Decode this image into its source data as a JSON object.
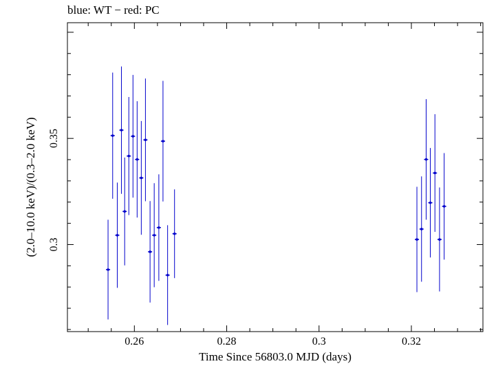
{
  "chart_data": {
    "type": "scatter",
    "title": "blue: WT − red: PC",
    "xlabel": "Time Since 56803.0 MJD (days)",
    "ylabel": "(2.0–10.0 keV)/(0.3–2.0 keV)",
    "xlim": [
      0.2455,
      0.3355
    ],
    "ylim": [
      0.259,
      0.4045
    ],
    "x_ticks": [
      0.26,
      0.28,
      0.3,
      0.32
    ],
    "x_tick_labels": [
      "0.26",
      "0.28",
      "0.3",
      "0.32"
    ],
    "y_ticks": [
      0.3,
      0.35
    ],
    "y_tick_labels": [
      "0.3",
      "0.35"
    ],
    "grid": false,
    "series": [
      {
        "color": "#0000cc",
        "points": [
          {
            "x": 0.2543,
            "y": 0.2882,
            "xerr": 0.00045,
            "yerr": 0.0235
          },
          {
            "x": 0.2553,
            "y": 0.3513,
            "xerr": 0.00045,
            "yerr": 0.0297
          },
          {
            "x": 0.2563,
            "y": 0.3044,
            "xerr": 0.00045,
            "yerr": 0.0248
          },
          {
            "x": 0.2572,
            "y": 0.3539,
            "xerr": 0.00045,
            "yerr": 0.03
          },
          {
            "x": 0.2579,
            "y": 0.3156,
            "xerr": 0.00045,
            "yerr": 0.0254
          },
          {
            "x": 0.2588,
            "y": 0.3417,
            "xerr": 0.00045,
            "yerr": 0.0278
          },
          {
            "x": 0.2597,
            "y": 0.351,
            "xerr": 0.00045,
            "yerr": 0.0289
          },
          {
            "x": 0.2606,
            "y": 0.3401,
            "xerr": 0.00045,
            "yerr": 0.0274
          },
          {
            "x": 0.2615,
            "y": 0.3314,
            "xerr": 0.00045,
            "yerr": 0.0268
          },
          {
            "x": 0.2624,
            "y": 0.3493,
            "xerr": 0.00045,
            "yerr": 0.0289
          },
          {
            "x": 0.2634,
            "y": 0.2966,
            "xerr": 0.00045,
            "yerr": 0.0239
          },
          {
            "x": 0.2643,
            "y": 0.3044,
            "xerr": 0.00045,
            "yerr": 0.0245
          },
          {
            "x": 0.2653,
            "y": 0.308,
            "xerr": 0.00045,
            "yerr": 0.0251
          },
          {
            "x": 0.2662,
            "y": 0.3487,
            "xerr": 0.00045,
            "yerr": 0.0284
          },
          {
            "x": 0.2672,
            "y": 0.2856,
            "xerr": 0.00045,
            "yerr": 0.0235
          },
          {
            "x": 0.2687,
            "y": 0.3051,
            "xerr": 0.00045,
            "yerr": 0.0209
          },
          {
            "x": 0.3212,
            "y": 0.3024,
            "xerr": 0.00045,
            "yerr": 0.0248
          },
          {
            "x": 0.3222,
            "y": 0.3073,
            "xerr": 0.00045,
            "yerr": 0.0248
          },
          {
            "x": 0.3232,
            "y": 0.3401,
            "xerr": 0.00045,
            "yerr": 0.0284
          },
          {
            "x": 0.3241,
            "y": 0.3197,
            "xerr": 0.00045,
            "yerr": 0.0258
          },
          {
            "x": 0.3251,
            "y": 0.3337,
            "xerr": 0.00045,
            "yerr": 0.0277
          },
          {
            "x": 0.3261,
            "y": 0.3024,
            "xerr": 0.00045,
            "yerr": 0.0245
          },
          {
            "x": 0.3271,
            "y": 0.318,
            "xerr": 0.00045,
            "yerr": 0.0251
          }
        ]
      }
    ]
  }
}
